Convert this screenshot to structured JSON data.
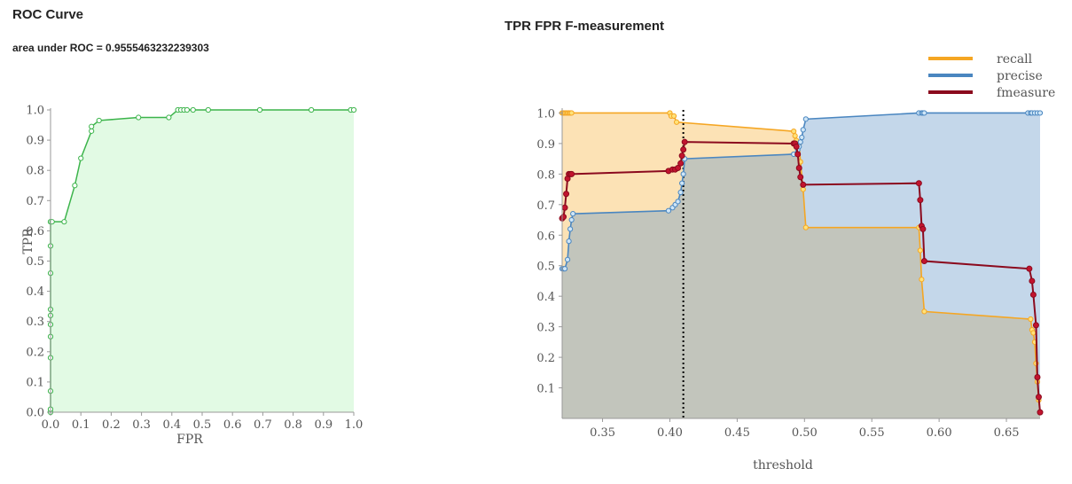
{
  "chart_data": [
    {
      "type": "line",
      "title": "ROC Curve",
      "subtitle": "area under ROC = 0.9555463232239303",
      "xlabel": "FPR",
      "ylabel": "TPR",
      "xlim": [
        0,
        1
      ],
      "ylim": [
        0,
        1
      ],
      "xticks": [
        "0.0",
        "0.1",
        "0.2",
        "0.3",
        "0.4",
        "0.5",
        "0.6",
        "0.7",
        "0.8",
        "0.9",
        "1.0"
      ],
      "yticks": [
        "0.0",
        "0.1",
        "0.2",
        "0.3",
        "0.4",
        "0.5",
        "0.6",
        "0.7",
        "0.8",
        "0.9",
        "1.0"
      ],
      "color": "#3cb44b",
      "fill": "#e2fae4",
      "x": [
        0,
        0,
        0,
        0,
        0,
        0,
        0,
        0,
        0,
        0,
        0,
        0,
        0.005,
        0.045,
        0.08,
        0.1,
        0.135,
        0.135,
        0.16,
        0.29,
        0.39,
        0.42,
        0.43,
        0.44,
        0.45,
        0.47,
        0.52,
        0.69,
        0.86,
        0.99,
        1.0
      ],
      "y": [
        0,
        0.01,
        0.07,
        0.18,
        0.25,
        0.29,
        0.32,
        0.34,
        0.46,
        0.55,
        0.63,
        0.63,
        0.63,
        0.63,
        0.75,
        0.84,
        0.93,
        0.945,
        0.965,
        0.975,
        0.975,
        1,
        1,
        1,
        1,
        1,
        1,
        1,
        1,
        1,
        1
      ]
    },
    {
      "type": "area",
      "title": "TPR FPR F-measurement",
      "xlabel": "threshold",
      "ylabel": "",
      "xlim": [
        0.32,
        0.675
      ],
      "ylim": [
        0,
        1.01
      ],
      "xticks": [
        "0.35",
        "0.40",
        "0.45",
        "0.50",
        "0.55",
        "0.60",
        "0.65"
      ],
      "yticks": [
        "0.1",
        "0.2",
        "0.3",
        "0.4",
        "0.5",
        "0.6",
        "0.7",
        "0.8",
        "0.9",
        "1.0"
      ],
      "legend": "top-right",
      "threshold_marker": 0.41,
      "series": [
        {
          "name": "recall",
          "color": "#f5a623",
          "fill": "rgba(248,178,60,0.38)",
          "x": [
            0.32,
            0.321,
            0.322,
            0.323,
            0.324,
            0.325,
            0.326,
            0.327,
            0.4,
            0.401,
            0.403,
            0.405,
            0.492,
            0.493,
            0.494,
            0.496,
            0.497,
            0.499,
            0.501,
            0.585,
            0.586,
            0.587,
            0.589,
            0.668,
            0.669,
            0.67,
            0.671,
            0.672,
            0.673,
            0.674,
            0.675
          ],
          "y": [
            1,
            1,
            1,
            1,
            1,
            1,
            1,
            1,
            1,
            0.99,
            0.99,
            0.97,
            0.94,
            0.925,
            0.91,
            0.9,
            0.84,
            0.75,
            0.625,
            0.625,
            0.55,
            0.455,
            0.35,
            0.325,
            0.29,
            0.28,
            0.25,
            0.18,
            0.12,
            0.06,
            0.02
          ]
        },
        {
          "name": "precise",
          "color": "#4a86c0",
          "fill": "rgba(100,150,200,0.38)",
          "x": [
            0.32,
            0.321,
            0.322,
            0.324,
            0.325,
            0.326,
            0.327,
            0.328,
            0.399,
            0.402,
            0.404,
            0.406,
            0.408,
            0.409,
            0.41,
            0.411,
            0.492,
            0.495,
            0.496,
            0.497,
            0.498,
            0.499,
            0.501,
            0.585,
            0.587,
            0.588,
            0.589,
            0.666,
            0.668,
            0.669,
            0.671,
            0.673,
            0.675
          ],
          "y": [
            0.49,
            0.49,
            0.49,
            0.52,
            0.58,
            0.62,
            0.65,
            0.67,
            0.68,
            0.69,
            0.7,
            0.71,
            0.74,
            0.77,
            0.8,
            0.85,
            0.865,
            0.88,
            0.89,
            0.905,
            0.92,
            0.945,
            0.98,
            1,
            1,
            1,
            1,
            1,
            1,
            1,
            1,
            1,
            1
          ]
        },
        {
          "name": "fmeasure",
          "color": "#8b0a1e",
          "fill": "none",
          "x": [
            0.32,
            0.321,
            0.322,
            0.323,
            0.324,
            0.325,
            0.326,
            0.327,
            0.399,
            0.402,
            0.404,
            0.406,
            0.408,
            0.409,
            0.41,
            0.411,
            0.492,
            0.493,
            0.494,
            0.495,
            0.496,
            0.497,
            0.499,
            0.585,
            0.586,
            0.587,
            0.588,
            0.589,
            0.667,
            0.669,
            0.67,
            0.672,
            0.673,
            0.674,
            0.675
          ],
          "y": [
            0.655,
            0.66,
            0.69,
            0.735,
            0.785,
            0.8,
            0.8,
            0.8,
            0.81,
            0.815,
            0.815,
            0.82,
            0.835,
            0.86,
            0.88,
            0.905,
            0.9,
            0.9,
            0.89,
            0.865,
            0.82,
            0.79,
            0.765,
            0.77,
            0.715,
            0.63,
            0.62,
            0.515,
            0.49,
            0.45,
            0.405,
            0.305,
            0.135,
            0.07,
            0.02
          ]
        }
      ]
    }
  ]
}
